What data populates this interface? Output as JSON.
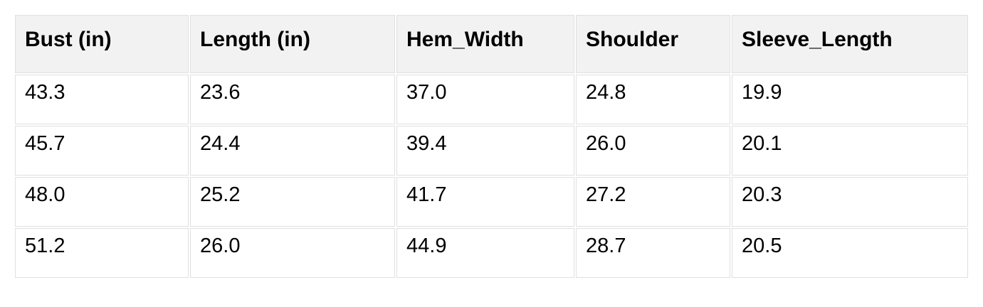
{
  "table": {
    "columns": [
      "Bust (in)",
      "Length (in)",
      "Hem_Width",
      "Shoulder",
      "Sleeve_Length"
    ],
    "rows": [
      [
        "43.3",
        "23.6",
        "37.0",
        "24.8",
        "19.9"
      ],
      [
        "45.7",
        "24.4",
        "39.4",
        "26.0",
        "20.1"
      ],
      [
        "48.0",
        "25.2",
        "41.7",
        "27.2",
        "20.3"
      ],
      [
        "51.2",
        "26.0",
        "44.9",
        "28.7",
        "20.5"
      ]
    ]
  },
  "colors": {
    "page_background": "#ffffff",
    "header_background": "#f2f2f2",
    "row_background": "#ffffff",
    "cell_border": "#e0e0e0",
    "text": "#000000"
  }
}
